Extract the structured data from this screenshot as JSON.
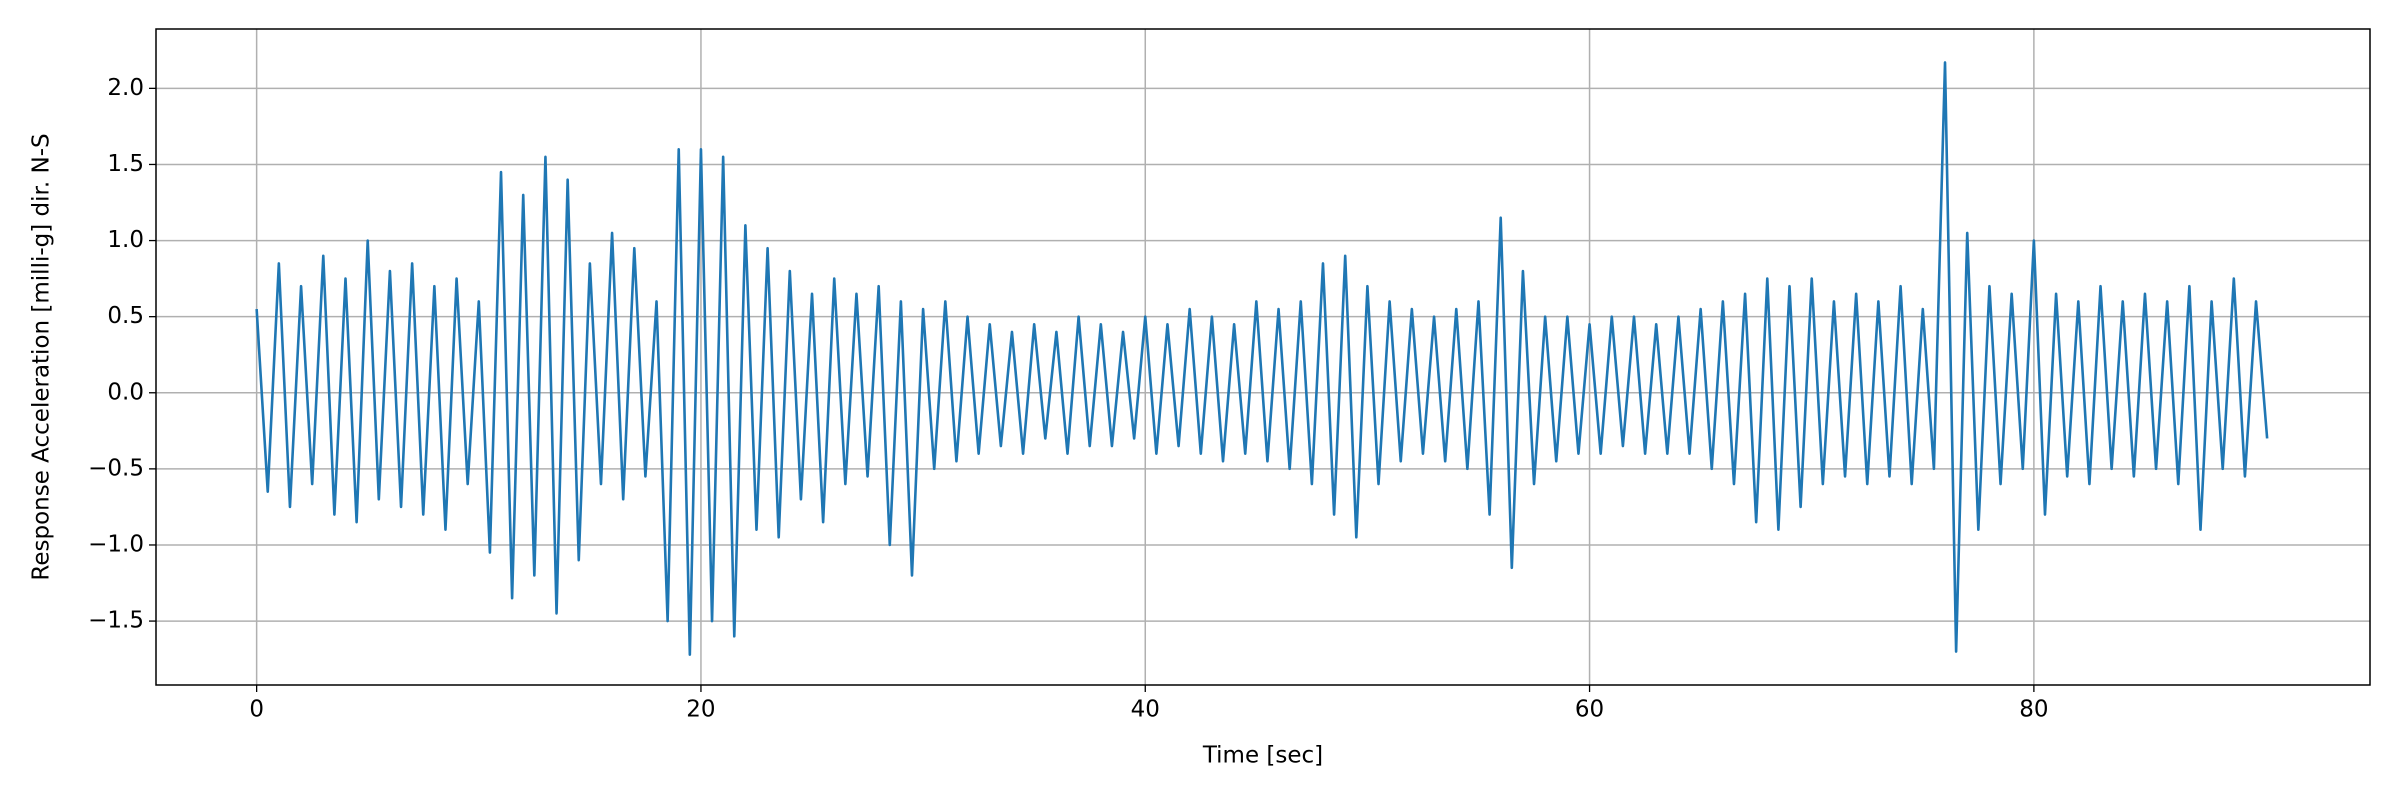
{
  "chart_data": {
    "type": "line",
    "xlabel": "Time [sec]",
    "ylabel": "Response Acceleration [milli-g] dir. N-S",
    "xlim": [
      -4.53,
      95.13
    ],
    "ylim": [
      -1.92,
      2.39
    ],
    "xticks": [
      0,
      20,
      40,
      60,
      80
    ],
    "yticks": [
      {
        "value": -1.5,
        "label": "−1.5"
      },
      {
        "value": -1.0,
        "label": "−1.0"
      },
      {
        "value": -0.5,
        "label": "−0.5"
      },
      {
        "value": 0,
        "label": "0.0"
      },
      0.5,
      {
        "value": 1.0,
        "label": "1.0"
      },
      1.5,
      {
        "value": 2.0,
        "label": "2.0"
      }
    ],
    "grid": true,
    "series": [
      {
        "color": "#1f77b4",
        "x": [
          0,
          0.5,
          1,
          1.5,
          2,
          2.5,
          3,
          3.5,
          4,
          4.5,
          5,
          5.5,
          6,
          6.5,
          7,
          7.5,
          8,
          8.5,
          9,
          9.5,
          10,
          10.5,
          11,
          11.5,
          12,
          12.5,
          13,
          13.5,
          14,
          14.5,
          15,
          15.5,
          16,
          16.5,
          17,
          17.5,
          18,
          18.5,
          19,
          19.5,
          20,
          20.5,
          21,
          21.5,
          22,
          22.5,
          23,
          23.5,
          24,
          24.5,
          25,
          25.5,
          26,
          26.5,
          27,
          27.5,
          28,
          28.5,
          29,
          29.5,
          30,
          30.5,
          31,
          31.5,
          32,
          32.5,
          33,
          33.5,
          34,
          34.5,
          35,
          35.5,
          36,
          36.5,
          37,
          37.5,
          38,
          38.5,
          39,
          39.5,
          40,
          40.5,
          41,
          41.5,
          42,
          42.5,
          43,
          43.5,
          44,
          44.5,
          45,
          45.5,
          46,
          46.5,
          47,
          47.5,
          48,
          48.5,
          49,
          49.5,
          50,
          50.5,
          51,
          51.5,
          52,
          52.5,
          53,
          53.5,
          54,
          54.5,
          55,
          55.5,
          56,
          56.5,
          57,
          57.5,
          58,
          58.5,
          59,
          59.5,
          60,
          60.5,
          61,
          61.5,
          62,
          62.5,
          63,
          63.5,
          64,
          64.5,
          65,
          65.5,
          66,
          66.5,
          67,
          67.5,
          68,
          68.5,
          69,
          69.5,
          70,
          70.5,
          71,
          71.5,
          72,
          72.5,
          73,
          73.5,
          74,
          74.5,
          75,
          75.5,
          76,
          76.5,
          77,
          77.5,
          78,
          78.5,
          79,
          79.5,
          80,
          80.5,
          81,
          81.5,
          82,
          82.5,
          83,
          83.5,
          84,
          84.5,
          85,
          85.5,
          86,
          86.5,
          87,
          87.5,
          88,
          88.5,
          89,
          89.5,
          90,
          90.5
        ],
        "values": [
          0.55,
          -0.65,
          0.85,
          -0.75,
          0.7,
          -0.6,
          0.9,
          -0.8,
          0.75,
          -0.85,
          1.0,
          -0.7,
          0.8,
          -0.75,
          0.85,
          -0.8,
          0.7,
          -0.9,
          0.75,
          -0.6,
          0.6,
          -1.05,
          1.45,
          -1.35,
          1.3,
          -1.2,
          1.55,
          -1.45,
          1.4,
          -1.1,
          0.85,
          -0.6,
          1.05,
          -0.7,
          0.95,
          -0.55,
          0.6,
          -1.5,
          1.6,
          -1.72,
          1.6,
          -1.5,
          1.55,
          -1.6,
          1.1,
          -0.9,
          0.95,
          -0.95,
          0.8,
          -0.7,
          0.65,
          -0.85,
          0.75,
          -0.6,
          0.65,
          -0.55,
          0.7,
          -1.0,
          0.6,
          -1.2,
          0.55,
          -0.5,
          0.6,
          -0.45,
          0.5,
          -0.4,
          0.45,
          -0.35,
          0.4,
          -0.4,
          0.45,
          -0.3,
          0.4,
          -0.4,
          0.5,
          -0.35,
          0.45,
          -0.35,
          0.4,
          -0.3,
          0.5,
          -0.4,
          0.45,
          -0.35,
          0.55,
          -0.4,
          0.5,
          -0.45,
          0.45,
          -0.4,
          0.6,
          -0.45,
          0.55,
          -0.5,
          0.6,
          -0.6,
          0.85,
          -0.8,
          0.9,
          -0.95,
          0.7,
          -0.6,
          0.6,
          -0.45,
          0.55,
          -0.4,
          0.5,
          -0.45,
          0.55,
          -0.5,
          0.6,
          -0.8,
          1.15,
          -1.15,
          0.8,
          -0.6,
          0.5,
          -0.45,
          0.5,
          -0.4,
          0.45,
          -0.4,
          0.5,
          -0.35,
          0.5,
          -0.4,
          0.45,
          -0.4,
          0.5,
          -0.4,
          0.55,
          -0.5,
          0.6,
          -0.6,
          0.65,
          -0.85,
          0.75,
          -0.9,
          0.7,
          -0.75,
          0.75,
          -0.6,
          0.6,
          -0.55,
          0.65,
          -0.6,
          0.6,
          -0.55,
          0.7,
          -0.6,
          0.55,
          -0.5,
          2.17,
          -1.7,
          1.05,
          -0.9,
          0.7,
          -0.6,
          0.65,
          -0.5,
          1.0,
          -0.8,
          0.65,
          -0.55,
          0.6,
          -0.6,
          0.7,
          -0.5,
          0.6,
          -0.55,
          0.65,
          -0.5,
          0.6,
          -0.6,
          0.7,
          -0.9,
          0.6,
          -0.5,
          0.75,
          -0.55,
          0.6,
          -0.3
        ]
      }
    ]
  }
}
